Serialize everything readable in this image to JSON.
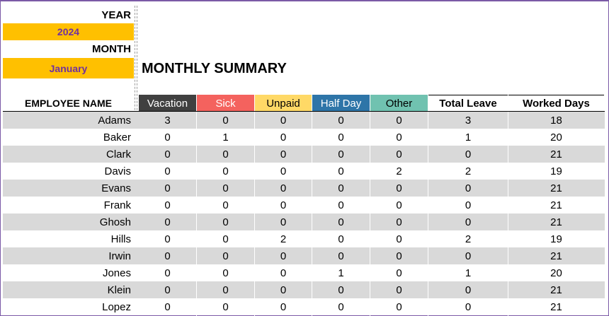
{
  "labels": {
    "year": "YEAR",
    "month": "MONTH",
    "employee_name": "EMPLOYEE NAME",
    "title": "MONTHLY SUMMARY"
  },
  "inputs": {
    "year": "2024",
    "month": "January"
  },
  "columns": [
    "Vacation",
    "Sick",
    "Unpaid",
    "Half Day",
    "Other",
    "Total Leave",
    "Worked Days"
  ],
  "colors": {
    "vacation": "#404040",
    "sick": "#f4625e",
    "unpaid": "#ffd966",
    "half_day": "#2e75a8",
    "other": "#70c2b0",
    "input_bg": "#ffc000",
    "input_text": "#7030a0",
    "row_stripe": "#d9d9d9"
  },
  "rows": [
    {
      "name": "Adams",
      "values": [
        "3",
        "0",
        "0",
        "0",
        "0",
        "3",
        "18"
      ]
    },
    {
      "name": "Baker",
      "values": [
        "0",
        "1",
        "0",
        "0",
        "0",
        "1",
        "20"
      ]
    },
    {
      "name": "Clark",
      "values": [
        "0",
        "0",
        "0",
        "0",
        "0",
        "0",
        "21"
      ]
    },
    {
      "name": "Davis",
      "values": [
        "0",
        "0",
        "0",
        "0",
        "2",
        "2",
        "19"
      ]
    },
    {
      "name": "Evans",
      "values": [
        "0",
        "0",
        "0",
        "0",
        "0",
        "0",
        "21"
      ]
    },
    {
      "name": "Frank",
      "values": [
        "0",
        "0",
        "0",
        "0",
        "0",
        "0",
        "21"
      ]
    },
    {
      "name": "Ghosh",
      "values": [
        "0",
        "0",
        "0",
        "0",
        "0",
        "0",
        "21"
      ]
    },
    {
      "name": "Hills",
      "values": [
        "0",
        "0",
        "2",
        "0",
        "0",
        "2",
        "19"
      ]
    },
    {
      "name": "Irwin",
      "values": [
        "0",
        "0",
        "0",
        "0",
        "0",
        "0",
        "21"
      ]
    },
    {
      "name": "Jones",
      "values": [
        "0",
        "0",
        "0",
        "1",
        "0",
        "1",
        "20"
      ]
    },
    {
      "name": "Klein",
      "values": [
        "0",
        "0",
        "0",
        "0",
        "0",
        "0",
        "21"
      ]
    },
    {
      "name": "Lopez",
      "values": [
        "0",
        "0",
        "0",
        "0",
        "0",
        "0",
        "21"
      ]
    }
  ]
}
